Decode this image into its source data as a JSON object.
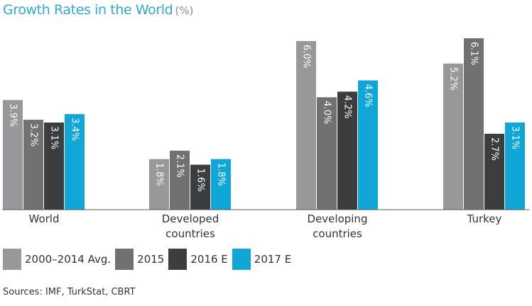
{
  "title": "Growth Rates in the World",
  "title_unit": "(%)",
  "source": "Sources: IMF, TurkStat, CBRT",
  "chart_data": {
    "type": "bar",
    "title": "Growth Rates in the World",
    "unit": "%",
    "categories": [
      [
        "World"
      ],
      [
        "Developed",
        "countries"
      ],
      [
        "Developing",
        "countries"
      ],
      [
        "Turkey"
      ]
    ],
    "series": [
      {
        "name": "2000–2014 Avg.",
        "color": "#97989a",
        "values": [
          3.9,
          1.8,
          6.0,
          5.2
        ],
        "labels": [
          "3.9%",
          "1.8%",
          "6.0%",
          "5.2%"
        ]
      },
      {
        "name": "2015",
        "color": "#707173",
        "values": [
          3.2,
          2.1,
          4.0,
          6.1
        ],
        "labels": [
          "3.2%",
          "2.1%",
          "4.0%",
          "6.1%"
        ]
      },
      {
        "name": "2016 E",
        "color": "#3c3d3f",
        "values": [
          3.1,
          1.6,
          4.2,
          2.7
        ],
        "labels": [
          "3.1%",
          "1.6%",
          "4.2%",
          "2.7%"
        ]
      },
      {
        "name": "2017 E",
        "color": "#10a6d8",
        "values": [
          3.4,
          1.8,
          4.6,
          3.1
        ],
        "labels": [
          "3.4%",
          "1.8%",
          "4.6%",
          "3.1%"
        ]
      }
    ],
    "ylim": [
      0,
      6.2
    ],
    "grid": false,
    "legend_position": "bottom-left"
  }
}
